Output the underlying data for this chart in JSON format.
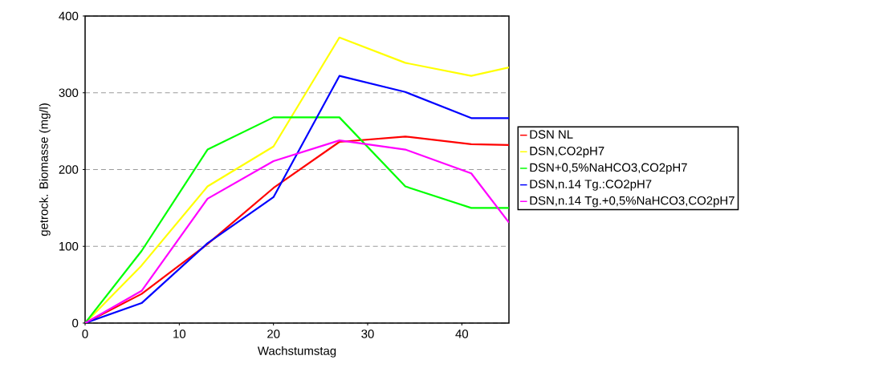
{
  "chart_data": {
    "type": "line",
    "xlabel": "Wachstumstag",
    "ylabel": "getrock. Biomasse (mg/l)",
    "x": [
      0,
      6,
      13,
      20,
      27,
      34,
      41,
      45
    ],
    "xlim": [
      0,
      45
    ],
    "xticks": [
      0,
      10,
      20,
      30,
      40
    ],
    "ylim": [
      0,
      400
    ],
    "yticks": [
      0,
      100,
      200,
      300,
      400
    ],
    "grid": "y",
    "legend": "right",
    "line_style": "solid",
    "marker": "none",
    "series": [
      {
        "name": "DSN NL",
        "color": "#ff0000",
        "values": [
          0,
          38,
          103,
          176,
          236,
          243,
          233,
          232
        ]
      },
      {
        "name": "DSN,CO2pH7",
        "color": "#ffff00",
        "values": [
          0,
          75,
          178,
          230,
          372,
          339,
          322,
          333
        ]
      },
      {
        "name": "DSN+0,5%NaHCO3,CO2pH7",
        "color": "#00ff00",
        "values": [
          0,
          94,
          226,
          268,
          268,
          178,
          150,
          150
        ]
      },
      {
        "name": "DSN,n.14 Tg.:CO2pH7",
        "color": "#0000ff",
        "values": [
          0,
          26,
          104,
          164,
          322,
          301,
          267,
          267
        ]
      },
      {
        "name": "DSN,n.14 Tg.+0,5%NaHCO3,CO2pH7",
        "color": "#ff00ff",
        "values": [
          0,
          42,
          162,
          211,
          238,
          226,
          195,
          131
        ]
      }
    ]
  }
}
